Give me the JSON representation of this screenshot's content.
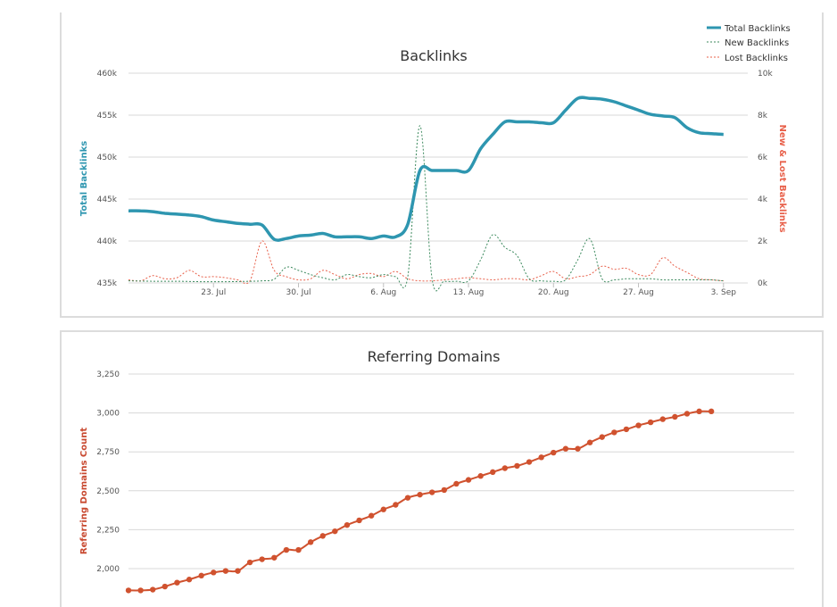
{
  "colors": {
    "total": "#2e96b0",
    "new": "#3c8a5e",
    "lost": "#e8604a",
    "domains": "#d0522f",
    "domains_axis": "#c8482f"
  },
  "chart_data": [
    {
      "type": "line",
      "title": "Backlinks",
      "y_label_left": "Total Backlinks",
      "y_label_right": "New & Lost Backlinks",
      "x_ticks": [
        {
          "label": "23. Jul",
          "day": 23
        },
        {
          "label": "30. Jul",
          "day": 30
        },
        {
          "label": "6. Aug",
          "day": 37
        },
        {
          "label": "13. Aug",
          "day": 44
        },
        {
          "label": "20. Aug",
          "day": 51
        },
        {
          "label": "27. Aug",
          "day": 58
        },
        {
          "label": "3. Sep",
          "day": 65
        }
      ],
      "xlim": [
        16,
        67
      ],
      "ylim_left": [
        435000,
        460000
      ],
      "ylim_right": [
        0,
        10000
      ],
      "y_ticks_left": [
        "435k",
        "440k",
        "445k",
        "450k",
        "455k",
        "460k"
      ],
      "y_ticks_right": [
        "0k",
        "2k",
        "4k",
        "6k",
        "8k",
        "10k"
      ],
      "legend": [
        "Total Backlinks",
        "New Backlinks",
        "Lost Backlinks"
      ],
      "legend_position": "top-right",
      "series": [
        {
          "name": "Total Backlinks",
          "axis": "left",
          "points": [
            [
              16,
              443600
            ],
            [
              17,
              443600
            ],
            [
              18,
              443500
            ],
            [
              19,
              443300
            ],
            [
              20,
              443200
            ],
            [
              21,
              443100
            ],
            [
              22,
              442900
            ],
            [
              23,
              442500
            ],
            [
              24,
              442300
            ],
            [
              25,
              442100
            ],
            [
              26,
              442000
            ],
            [
              27,
              441900
            ],
            [
              28,
              440200
            ],
            [
              29,
              440300
            ],
            [
              30,
              440600
            ],
            [
              31,
              440700
            ],
            [
              32,
              440900
            ],
            [
              33,
              440500
            ],
            [
              34,
              440500
            ],
            [
              35,
              440500
            ],
            [
              36,
              440300
            ],
            [
              37,
              440600
            ],
            [
              38,
              440500
            ],
            [
              39,
              442000
            ],
            [
              40,
              448400
            ],
            [
              41,
              448400
            ],
            [
              42,
              448400
            ],
            [
              43,
              448400
            ],
            [
              44,
              448400
            ],
            [
              45,
              451000
            ],
            [
              46,
              452700
            ],
            [
              47,
              454200
            ],
            [
              48,
              454200
            ],
            [
              49,
              454200
            ],
            [
              50,
              454100
            ],
            [
              51,
              454100
            ],
            [
              52,
              455600
            ],
            [
              53,
              457000
            ],
            [
              54,
              457000
            ],
            [
              55,
              456900
            ],
            [
              56,
              456600
            ],
            [
              57,
              456100
            ],
            [
              58,
              455600
            ],
            [
              59,
              455100
            ],
            [
              60,
              454900
            ],
            [
              61,
              454700
            ],
            [
              62,
              453500
            ],
            [
              63,
              452900
            ],
            [
              64,
              452800
            ],
            [
              65,
              452700
            ]
          ]
        },
        {
          "name": "New Backlinks",
          "axis": "right",
          "points": [
            [
              16,
              100
            ],
            [
              18,
              80
            ],
            [
              20,
              80
            ],
            [
              22,
              60
            ],
            [
              24,
              60
            ],
            [
              26,
              80
            ],
            [
              27,
              100
            ],
            [
              28,
              180
            ],
            [
              29,
              750
            ],
            [
              30,
              600
            ],
            [
              31,
              400
            ],
            [
              32,
              250
            ],
            [
              33,
              150
            ],
            [
              34,
              400
            ],
            [
              35,
              300
            ],
            [
              36,
              250
            ],
            [
              37,
              400
            ],
            [
              38,
              300
            ],
            [
              39,
              300
            ],
            [
              40,
              7500
            ],
            [
              41,
              200
            ],
            [
              42,
              80
            ],
            [
              43,
              80
            ],
            [
              44,
              100
            ],
            [
              45,
              1100
            ],
            [
              46,
              2300
            ],
            [
              47,
              1700
            ],
            [
              48,
              1300
            ],
            [
              49,
              200
            ],
            [
              50,
              100
            ],
            [
              51,
              80
            ],
            [
              52,
              150
            ],
            [
              53,
              1100
            ],
            [
              54,
              2100
            ],
            [
              55,
              200
            ],
            [
              56,
              150
            ],
            [
              57,
              200
            ],
            [
              58,
              200
            ],
            [
              59,
              200
            ],
            [
              60,
              150
            ],
            [
              61,
              150
            ],
            [
              62,
              150
            ],
            [
              63,
              150
            ],
            [
              64,
              150
            ],
            [
              65,
              100
            ]
          ]
        },
        {
          "name": "Lost Backlinks",
          "axis": "right",
          "points": [
            [
              16,
              150
            ],
            [
              17,
              100
            ],
            [
              18,
              350
            ],
            [
              19,
              200
            ],
            [
              20,
              250
            ],
            [
              21,
              600
            ],
            [
              22,
              300
            ],
            [
              23,
              300
            ],
            [
              24,
              250
            ],
            [
              25,
              150
            ],
            [
              26,
              100
            ],
            [
              27,
              2000
            ],
            [
              28,
              600
            ],
            [
              29,
              300
            ],
            [
              30,
              150
            ],
            [
              31,
              200
            ],
            [
              32,
              600
            ],
            [
              33,
              400
            ],
            [
              34,
              200
            ],
            [
              35,
              400
            ],
            [
              36,
              450
            ],
            [
              37,
              300
            ],
            [
              38,
              550
            ],
            [
              39,
              200
            ],
            [
              40,
              100
            ],
            [
              41,
              100
            ],
            [
              42,
              150
            ],
            [
              43,
              200
            ],
            [
              44,
              250
            ],
            [
              45,
              200
            ],
            [
              46,
              150
            ],
            [
              47,
              200
            ],
            [
              48,
              200
            ],
            [
              49,
              150
            ],
            [
              50,
              350
            ],
            [
              51,
              550
            ],
            [
              52,
              200
            ],
            [
              53,
              300
            ],
            [
              54,
              400
            ],
            [
              55,
              800
            ],
            [
              56,
              650
            ],
            [
              57,
              700
            ],
            [
              58,
              400
            ],
            [
              59,
              400
            ],
            [
              60,
              1200
            ],
            [
              61,
              800
            ],
            [
              62,
              500
            ],
            [
              63,
              200
            ],
            [
              64,
              150
            ],
            [
              65,
              100
            ]
          ]
        }
      ]
    },
    {
      "type": "line",
      "title": "Referring Domains",
      "y_label_left": "Referring Domains Count",
      "ylim": [
        1875,
        3250
      ],
      "y_ticks": [
        "2,000",
        "2,250",
        "2,500",
        "2,750",
        "3,000",
        "3,250"
      ],
      "y_tick_values": [
        2000,
        2250,
        2500,
        2750,
        3000,
        3250
      ],
      "xlim": [
        16,
        67
      ],
      "series": [
        {
          "name": "Referring Domains",
          "points": [
            [
              16,
              1860
            ],
            [
              17,
              1860
            ],
            [
              18,
              1865
            ],
            [
              19,
              1885
            ],
            [
              20,
              1910
            ],
            [
              21,
              1930
            ],
            [
              22,
              1955
            ],
            [
              23,
              1975
            ],
            [
              24,
              1985
            ],
            [
              25,
              1985
            ],
            [
              26,
              2040
            ],
            [
              27,
              2060
            ],
            [
              28,
              2070
            ],
            [
              29,
              2120
            ],
            [
              30,
              2120
            ],
            [
              31,
              2170
            ],
            [
              32,
              2210
            ],
            [
              33,
              2240
            ],
            [
              34,
              2280
            ],
            [
              35,
              2310
            ],
            [
              36,
              2340
            ],
            [
              37,
              2380
            ],
            [
              38,
              2410
            ],
            [
              39,
              2455
            ],
            [
              40,
              2475
            ],
            [
              41,
              2490
            ],
            [
              42,
              2505
            ],
            [
              43,
              2545
            ],
            [
              44,
              2570
            ],
            [
              45,
              2595
            ],
            [
              46,
              2620
            ],
            [
              47,
              2645
            ],
            [
              48,
              2660
            ],
            [
              49,
              2685
            ],
            [
              50,
              2715
            ],
            [
              51,
              2745
            ],
            [
              52,
              2770
            ],
            [
              53,
              2770
            ],
            [
              54,
              2810
            ],
            [
              55,
              2845
            ],
            [
              56,
              2875
            ],
            [
              57,
              2895
            ],
            [
              58,
              2920
            ],
            [
              59,
              2940
            ],
            [
              60,
              2960
            ],
            [
              61,
              2975
            ],
            [
              62,
              2995
            ],
            [
              63,
              3010
            ],
            [
              64,
              3010
            ]
          ]
        }
      ]
    }
  ]
}
